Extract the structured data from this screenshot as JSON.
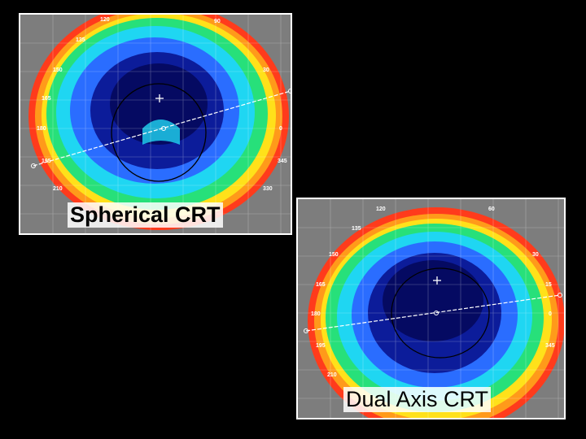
{
  "slide": {
    "maps": [
      {
        "caption": "Spherical CRT",
        "scale_labels": [
          "120",
          "90",
          "135",
          "150",
          "165",
          "180",
          "195",
          "210",
          "30",
          "0",
          "345",
          "330"
        ]
      },
      {
        "caption": "Dual Axis CRT",
        "scale_labels": [
          "120",
          "60",
          "135",
          "150",
          "165",
          "180",
          "195",
          "210",
          "30",
          "15",
          "0",
          "345"
        ]
      }
    ],
    "colors": {
      "background": "#000000",
      "frame": "#ffffff",
      "gray": "#7d7d7d",
      "red": "#ff3b1c",
      "orange": "#ff9a1a",
      "yellow": "#ffe11a",
      "green": "#27e07a",
      "cyan": "#1fd6f2",
      "blue": "#2a6dff",
      "dark_blue": "#0c1c9a",
      "navy": "#050a62"
    }
  }
}
